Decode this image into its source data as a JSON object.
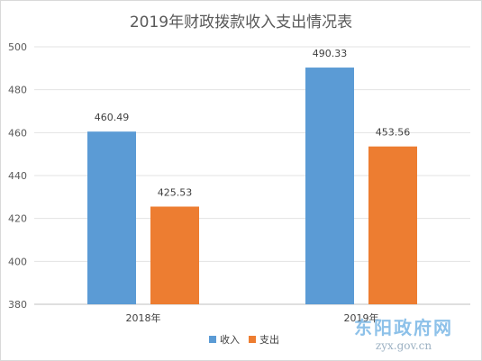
{
  "chart_data": {
    "type": "bar",
    "title": "2019年财政拨款收入支出情况表",
    "categories": [
      "2018年",
      "2019年"
    ],
    "series": [
      {
        "name": "收入",
        "values": [
          460.49,
          490.33
        ],
        "color": "#5b9bd5"
      },
      {
        "name": "支出",
        "values": [
          425.53,
          453.56
        ],
        "color": "#ed7d31"
      }
    ],
    "ylim": [
      380,
      500
    ],
    "yticks": [
      380,
      400,
      420,
      440,
      460,
      480,
      500
    ],
    "grid": true,
    "legend": "bottom",
    "xlabel": "",
    "ylabel": ""
  },
  "watermark": {
    "title": "东阳政府网",
    "url": "zyx.gov.cn"
  }
}
